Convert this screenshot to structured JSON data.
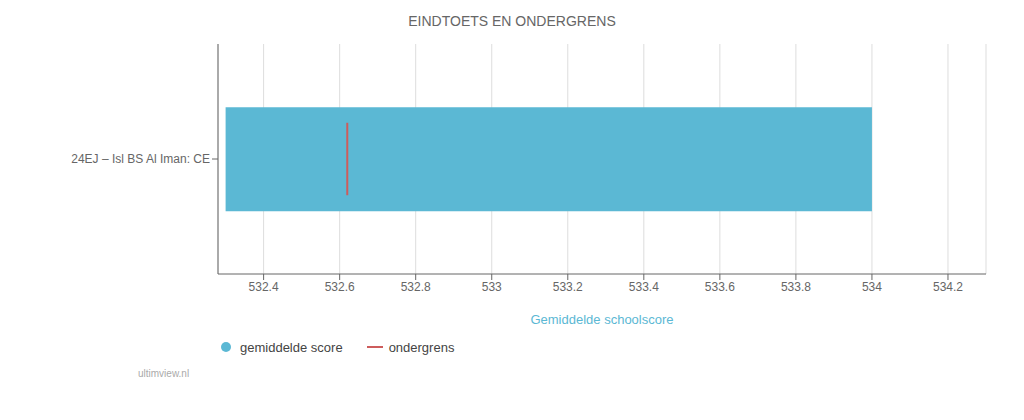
{
  "chart_data": {
    "type": "bar",
    "orientation": "horizontal",
    "title": "EINDTOETS EN ONDERGRENS",
    "xlabel": "Gemiddelde schoolscore",
    "categories": [
      "24EJ – Isl BS Al Iman: CE"
    ],
    "series": [
      {
        "name": "gemiddelde score",
        "type": "bar",
        "color": "#5BB8D4",
        "values": [
          [
            532.3,
            534.0
          ]
        ]
      },
      {
        "name": "ondergrens",
        "type": "line",
        "color": "#CD5C5C",
        "values": [
          532.62
        ]
      }
    ],
    "xlim": [
      532.28,
      534.3
    ],
    "xticks": [
      532.4,
      532.6,
      532.8,
      533.0,
      533.2,
      533.4,
      533.6,
      533.8,
      534.0,
      534.2
    ],
    "grid": true,
    "legend": "bottom left",
    "annotations": [
      "ultimview.nl"
    ]
  }
}
